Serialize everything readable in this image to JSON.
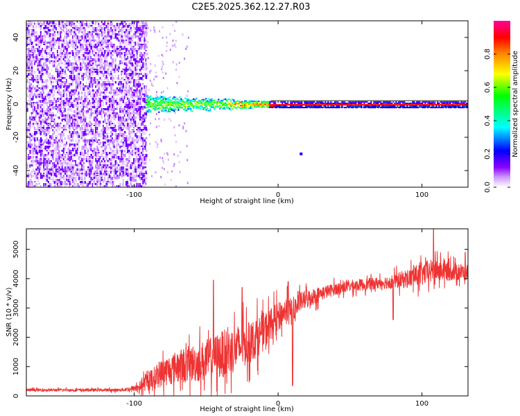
{
  "title": "C2E5.2025.362.12.27.R03",
  "chart_data": [
    {
      "type": "heatmap",
      "name": "spectrogram",
      "xlabel": "Height of straight line (km)",
      "ylabel": "Frequency (Hz)",
      "xlim": [
        -175,
        132
      ],
      "ylim": [
        -50,
        50
      ],
      "xticks": [
        -100,
        0,
        100
      ],
      "yticks": [
        -40,
        -20,
        0,
        20,
        40
      ],
      "colorbar": {
        "label": "Normalized spectral amplitude",
        "range": [
          0,
          1
        ],
        "ticks": [
          "0.0",
          "0.2",
          "0.4",
          "0.6",
          "0.8"
        ],
        "stops": [
          "#ffffff",
          "#8800ff",
          "#0000ff",
          "#00ffff",
          "#00ff00",
          "#ffff00",
          "#ff7700",
          "#ff0000",
          "#ff00aa"
        ]
      },
      "noise_region_x": [
        -175,
        -92
      ],
      "line_region_x": [
        -92,
        132
      ],
      "cursor_line_hz": [
        2,
        -2
      ],
      "max_y_x_pairs": [
        [
          -90,
          0.5
        ],
        [
          -80,
          0.8
        ],
        [
          -70,
          1.0
        ],
        [
          -60,
          0.6
        ],
        [
          -50,
          1.2
        ],
        [
          -40,
          2.0
        ],
        [
          -30,
          1.5
        ],
        [
          -20,
          1.0
        ],
        [
          -10,
          1.2
        ],
        [
          0,
          0.8
        ],
        [
          10,
          1.0
        ],
        [
          20,
          0.8
        ],
        [
          40,
          0.5
        ],
        [
          60,
          0.4
        ],
        [
          80,
          0.3
        ],
        [
          100,
          0.3
        ],
        [
          132,
          0.3
        ]
      ],
      "isolated_point": [
        16,
        -30
      ]
    },
    {
      "type": "line",
      "name": "snr",
      "xlabel": "Height of straight line (km)",
      "ylabel": "SNR (10 * v/v)",
      "xlim": [
        -175,
        132
      ],
      "ylim": [
        0,
        5700
      ],
      "xticks": [
        -100,
        0,
        100
      ],
      "yticks": [
        0,
        1000,
        2000,
        3000,
        4000,
        5000
      ],
      "color": "#ee3333",
      "envelope": {
        "x": [
          -175,
          -140,
          -110,
          -100,
          -95,
          -90,
          -80,
          -70,
          -60,
          -50,
          -40,
          -30,
          -20,
          -10,
          0,
          5,
          10,
          15,
          20,
          30,
          40,
          50,
          60,
          70,
          80,
          90,
          100,
          110,
          120,
          132
        ],
        "mean": [
          200,
          200,
          200,
          250,
          350,
          500,
          800,
          1000,
          1100,
          1200,
          1400,
          1600,
          1800,
          2200,
          2700,
          2900,
          2800,
          3200,
          3300,
          3500,
          3650,
          3750,
          3800,
          3850,
          3900,
          4000,
          4150,
          4300,
          4250,
          4200
        ],
        "spread": [
          60,
          60,
          60,
          120,
          250,
          400,
          600,
          700,
          800,
          900,
          1000,
          1000,
          900,
          800,
          600,
          500,
          700,
          400,
          400,
          300,
          250,
          250,
          250,
          250,
          300,
          400,
          500,
          500,
          400,
          350
        ]
      },
      "peaks": [
        [
          -45,
          3950
        ],
        [
          -25,
          3700
        ],
        [
          7,
          3900
        ],
        [
          108,
          5700
        ],
        [
          130,
          4900
        ]
      ],
      "dips": [
        [
          10,
          350
        ],
        [
          80,
          2600
        ]
      ]
    }
  ]
}
